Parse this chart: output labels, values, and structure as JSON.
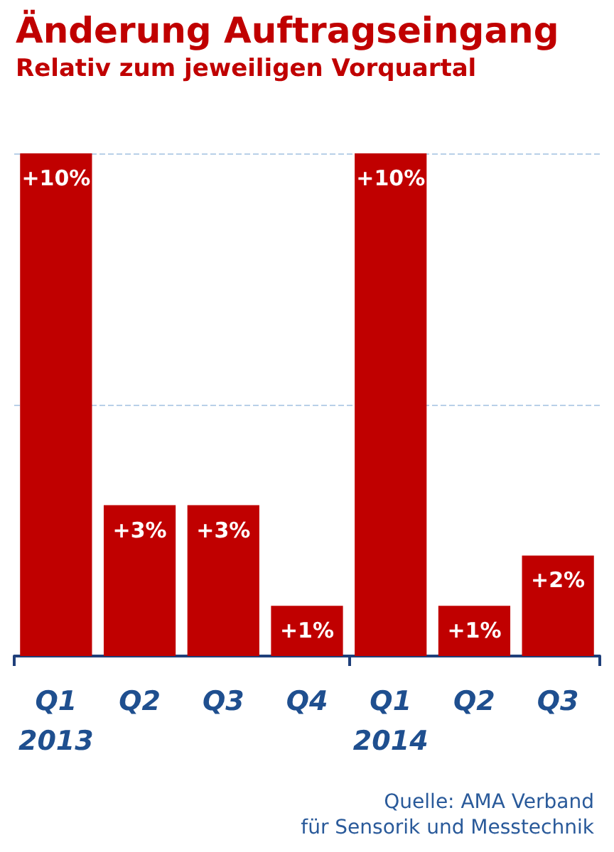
{
  "chart_data": {
    "type": "bar",
    "title": "Änderung Auftragseingang",
    "subtitle": "Relativ zum jeweiligen Vorquartal",
    "categories": [
      "Q1\n2013",
      "Q2",
      "Q3",
      "Q4",
      "Q1\n2014",
      "Q2",
      "Q3"
    ],
    "values": [
      10,
      3,
      3,
      1,
      10,
      1,
      2
    ],
    "value_labels": [
      "+10%",
      "+3%",
      "+3%",
      "+1%",
      "+10%",
      "+1%",
      "+2%"
    ],
    "color": "#c00000",
    "ylim": [
      0,
      10
    ],
    "tick_labels": "x",
    "ref_lines": [
      {
        "axis": "y",
        "value": 5,
        "color": "#b8d0e8",
        "line_style": "dashed"
      },
      {
        "axis": "y",
        "value": 10,
        "color": "#b8d0e8",
        "line_style": "dashed"
      }
    ],
    "annotations": [
      "Quelle: AMA Verband\nfür Sensorik und Messtechnik"
    ]
  }
}
